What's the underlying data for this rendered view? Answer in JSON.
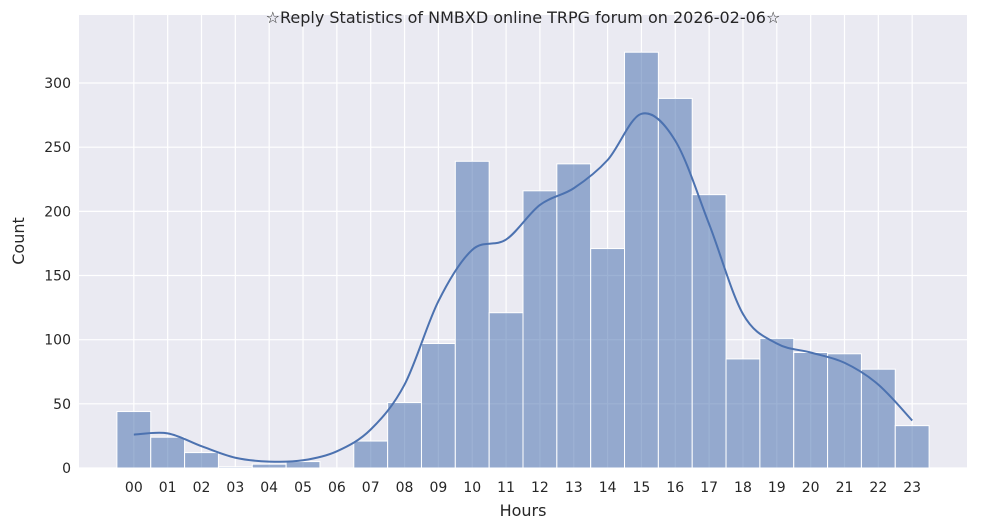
{
  "chart_data": {
    "type": "bar",
    "title": "☆Reply Statistics of NMBXD online TRPG forum on 2026-02-06☆",
    "xlabel": "Hours",
    "ylabel": "Count",
    "categories": [
      "00",
      "01",
      "02",
      "03",
      "04",
      "05",
      "06",
      "07",
      "08",
      "09",
      "10",
      "11",
      "12",
      "13",
      "14",
      "15",
      "16",
      "17",
      "18",
      "19",
      "20",
      "21",
      "22",
      "23"
    ],
    "values": [
      44,
      24,
      12,
      1,
      3,
      5,
      0,
      21,
      51,
      97,
      239,
      121,
      216,
      237,
      171,
      324,
      288,
      213,
      85,
      101,
      90,
      89,
      77,
      33
    ],
    "kde": [
      26,
      27,
      17,
      8,
      5,
      6,
      13,
      30,
      65,
      130,
      170,
      178,
      205,
      218,
      240,
      276,
      255,
      190,
      120,
      97,
      90,
      82,
      65,
      37
    ],
    "yticks": [
      0,
      50,
      100,
      150,
      200,
      250,
      300
    ],
    "xlim": [
      -1.62,
      24.62
    ],
    "ylim": [
      0,
      353
    ],
    "grid": true,
    "colors": {
      "bar": "#4c72b0",
      "background": "#eaeaf2",
      "grid": "#ffffff",
      "line": "#4c72b0"
    }
  }
}
